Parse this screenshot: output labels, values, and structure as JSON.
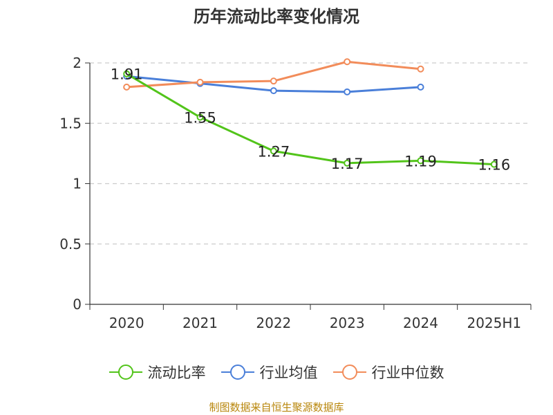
{
  "chart_data": {
    "type": "line",
    "title": "历年流动比率变化情况",
    "categories": [
      "2020",
      "2021",
      "2022",
      "2023",
      "2024",
      "2025H1"
    ],
    "y_ticks": [
      "0",
      "0.5",
      "1",
      "1.5",
      "2"
    ],
    "ylim": [
      0,
      2
    ],
    "grid": true,
    "legend_position": "bottom",
    "series": [
      {
        "name": "流动比率",
        "color": "#52c41a",
        "values": [
          1.91,
          1.55,
          1.27,
          1.17,
          1.19,
          1.16
        ],
        "labels": [
          "1.91",
          "1.55",
          "1.27",
          "1.17",
          "1.19",
          "1.16"
        ]
      },
      {
        "name": "行业均值",
        "color": "#4a7fd9",
        "values": [
          1.89,
          1.83,
          1.77,
          1.76,
          1.8,
          null
        ]
      },
      {
        "name": "行业中位数",
        "color": "#f28c5a",
        "values": [
          1.8,
          1.84,
          1.85,
          2.01,
          1.95,
          null
        ]
      }
    ]
  },
  "footer": {
    "source": "制图数据来自恒生聚源数据库"
  }
}
